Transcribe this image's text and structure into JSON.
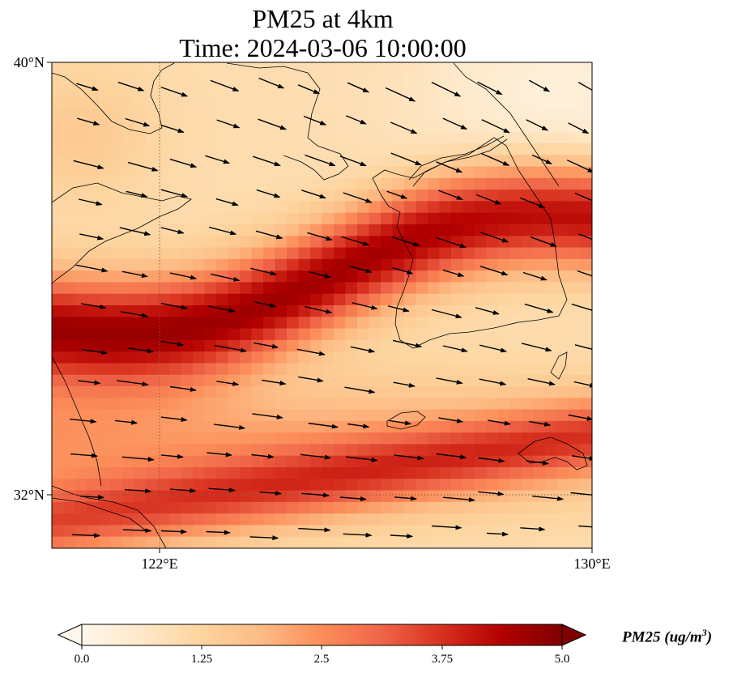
{
  "title": {
    "line1": "PM25 at 4km",
    "line2": "Time: 2024-03-06 10:00:00"
  },
  "map": {
    "lat_range": [
      31.0,
      40.0
    ],
    "lon_range": [
      120.0,
      130.0
    ],
    "lat_ticks": [
      {
        "value": 40,
        "label": "40°N"
      },
      {
        "value": 32,
        "label": "32°N"
      }
    ],
    "lon_ticks": [
      {
        "value": 122,
        "label": "122°E"
      },
      {
        "value": 130,
        "label": "130°E"
      }
    ],
    "gridlines": true,
    "gridline_color": "#8b5a3c",
    "coastline_color": "#000000",
    "wind_arrow_color": "#000000"
  },
  "colorbar": {
    "label_main": "PM25 (ug/m",
    "label_sup": "3",
    "label_end": ")",
    "min": 0.0,
    "max": 5.0,
    "ticks": [
      "0.0",
      "1.25",
      "2.5",
      "3.75",
      "5.0"
    ],
    "colormap": "OrRd",
    "colors": [
      "#fff7ec",
      "#fee8c8",
      "#fdd49e",
      "#fdbb84",
      "#fc8d59",
      "#ef6548",
      "#d7301f",
      "#b30000",
      "#7f0000"
    ]
  }
}
